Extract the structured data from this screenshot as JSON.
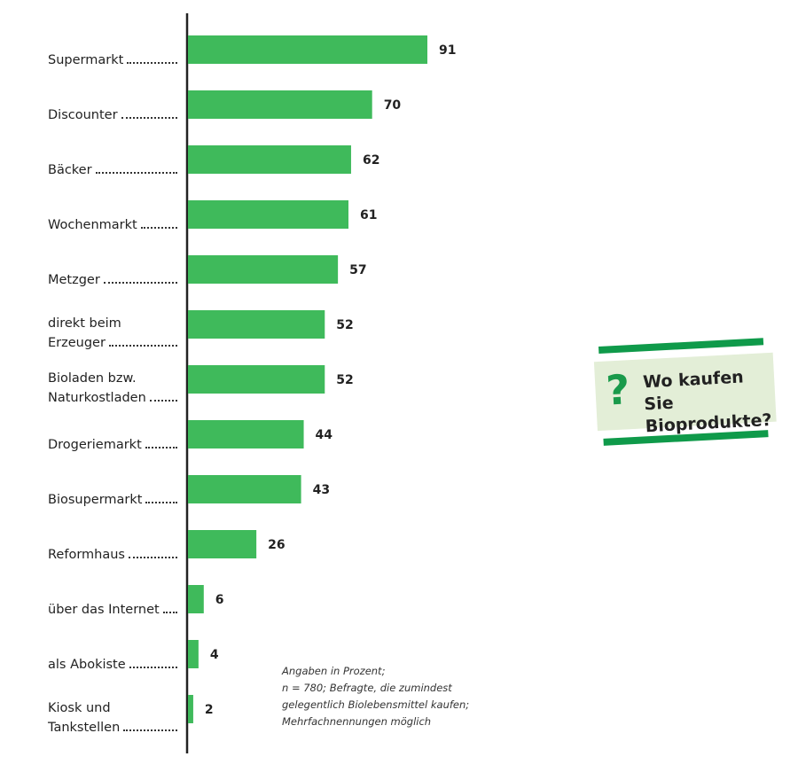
{
  "chart_data": {
    "type": "bar",
    "orientation": "horizontal",
    "categories": [
      "Supermarkt",
      "Discounter",
      "Bäcker",
      "Wochenmarkt",
      "Metzger",
      "direkt beim Erzeuger",
      "Bioladen bzw. Naturkostladen",
      "Drogeriemarkt",
      "Biosupermarkt",
      "Reformhaus",
      "über das Internet",
      "als Abokiste",
      "Kiosk und Tankstellen"
    ],
    "label_lines": [
      [
        "Supermarkt"
      ],
      [
        "Discounter"
      ],
      [
        "Bäcker"
      ],
      [
        "Wochenmarkt"
      ],
      [
        "Metzger"
      ],
      [
        "direkt beim",
        "Erzeuger"
      ],
      [
        "Bioladen bzw.",
        "Naturkostladen"
      ],
      [
        "Drogeriemarkt"
      ],
      [
        "Biosupermarkt"
      ],
      [
        "Reformhaus"
      ],
      [
        "über das Internet"
      ],
      [
        "als Abokiste"
      ],
      [
        "Kiosk und",
        "Tankstellen"
      ]
    ],
    "values": [
      91,
      70,
      62,
      61,
      57,
      52,
      52,
      44,
      43,
      26,
      6,
      4,
      2
    ],
    "value_labels": [
      "91",
      "70",
      "62",
      "61",
      "57",
      "52",
      "52",
      "44",
      "43",
      "26",
      "6",
      "4",
      "2"
    ],
    "xlim": [
      0,
      91
    ],
    "grid": false,
    "bar_color": "#3fba5b"
  },
  "badge": {
    "symbol": "?",
    "line1": "Wo kaufen Sie",
    "line2": "Bioprodukte?",
    "colors": {
      "background": "#e3eed7",
      "stripe": "#0f9a4a"
    }
  },
  "note": [
    "Angaben in Prozent;",
    "n = 780; Befragte, die zumindest",
    "gelegentlich Biolebensmittel kaufen;",
    "Mehrfachnennungen möglich"
  ]
}
